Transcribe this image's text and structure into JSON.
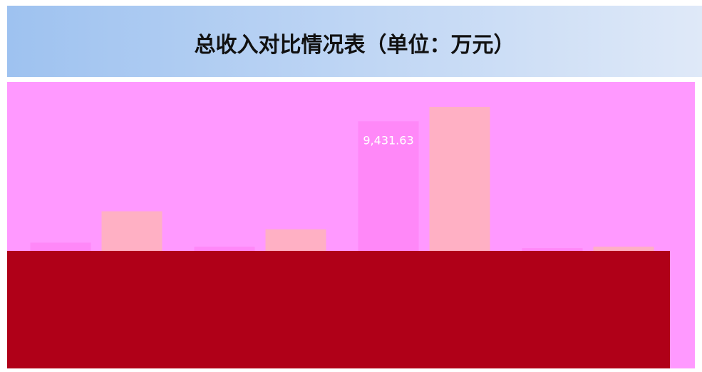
{
  "chart_data": {
    "type": "bar",
    "title": "总收入对比情况表（单位：万元）",
    "categories": [
      null,
      null,
      null,
      null
    ],
    "series": [
      {
        "color": "#ff88f8",
        "values": [
          600,
          300,
          9431.63,
          200
        ],
        "value_labels": [
          null,
          null,
          "9,431.63",
          null
        ]
      },
      {
        "color": "#ffb0c4",
        "values": [
          2880,
          1570,
          10480,
          300
        ]
      }
    ]
  }
}
